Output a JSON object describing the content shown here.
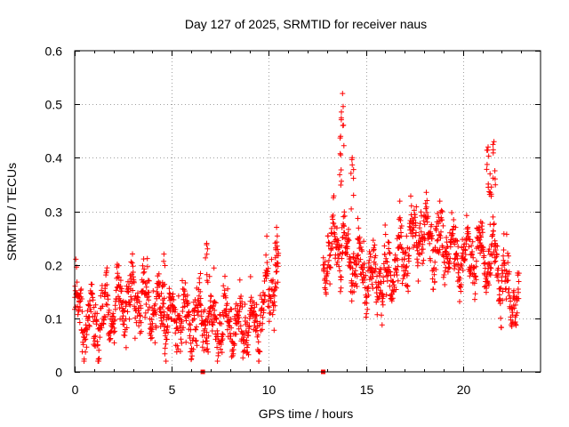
{
  "chart_data": {
    "type": "scatter",
    "title": "Day 127 of 2025, SRMTID for receiver naus",
    "xlabel": "GPS time / hours",
    "ylabel": "SRMTID / TECUs",
    "xlim": [
      0,
      24
    ],
    "ylim": [
      0,
      0.6
    ],
    "xticks": [
      "0",
      "5",
      "10",
      "15",
      "20"
    ],
    "yticks": [
      "0",
      "0.1",
      "0.2",
      "0.3",
      "0.4",
      "0.5",
      "0.6"
    ],
    "grid": true,
    "marker": "+",
    "colors": {
      "series": "#ff0000",
      "grid": "#a0a0a0",
      "axes": "#000000"
    },
    "series": [
      {
        "name": "SRMTID",
        "segments": [
          {
            "x_start": 0.0,
            "x_end": 10.5,
            "base": [
              [
                0.0,
                0.12
              ],
              [
                0.5,
                0.1
              ],
              [
                1.0,
                0.09
              ],
              [
                2.0,
                0.11
              ],
              [
                2.5,
                0.13
              ],
              [
                3.0,
                0.14
              ],
              [
                4.0,
                0.12
              ],
              [
                4.5,
                0.11
              ],
              [
                5.0,
                0.09
              ],
              [
                5.5,
                0.1
              ],
              [
                6.0,
                0.09
              ],
              [
                6.5,
                0.1
              ],
              [
                7.0,
                0.09
              ],
              [
                8.0,
                0.1
              ],
              [
                8.5,
                0.08
              ],
              [
                9.0,
                0.09
              ],
              [
                9.5,
                0.1
              ],
              [
                10.0,
                0.16
              ],
              [
                10.5,
                0.18
              ]
            ]
          },
          {
            "x_start": 12.8,
            "x_end": 22.9,
            "base": [
              [
                12.8,
                0.2
              ],
              [
                13.5,
                0.24
              ],
              [
                14.0,
                0.22
              ],
              [
                14.5,
                0.2
              ],
              [
                15.0,
                0.18
              ],
              [
                16.0,
                0.17
              ],
              [
                16.5,
                0.2
              ],
              [
                17.0,
                0.22
              ],
              [
                17.5,
                0.25
              ],
              [
                18.0,
                0.26
              ],
              [
                19.0,
                0.23
              ],
              [
                20.0,
                0.21
              ],
              [
                21.0,
                0.22
              ],
              [
                21.7,
                0.2
              ],
              [
                22.0,
                0.18
              ],
              [
                22.5,
                0.13
              ],
              [
                22.9,
                0.14
              ]
            ]
          }
        ],
        "spikes": [
          {
            "x": 4.6,
            "y": 0.22
          },
          {
            "x": 6.8,
            "y": 0.24
          },
          {
            "x": 10.4,
            "y": 0.27
          },
          {
            "x": 13.8,
            "y": 0.52
          },
          {
            "x": 13.7,
            "y": 0.44
          },
          {
            "x": 14.3,
            "y": 0.4
          },
          {
            "x": 21.3,
            "y": 0.42
          },
          {
            "x": 21.6,
            "y": 0.43
          },
          {
            "x": 21.4,
            "y": 0.37
          }
        ],
        "zero_points": [
          6.6,
          12.8
        ]
      }
    ]
  }
}
